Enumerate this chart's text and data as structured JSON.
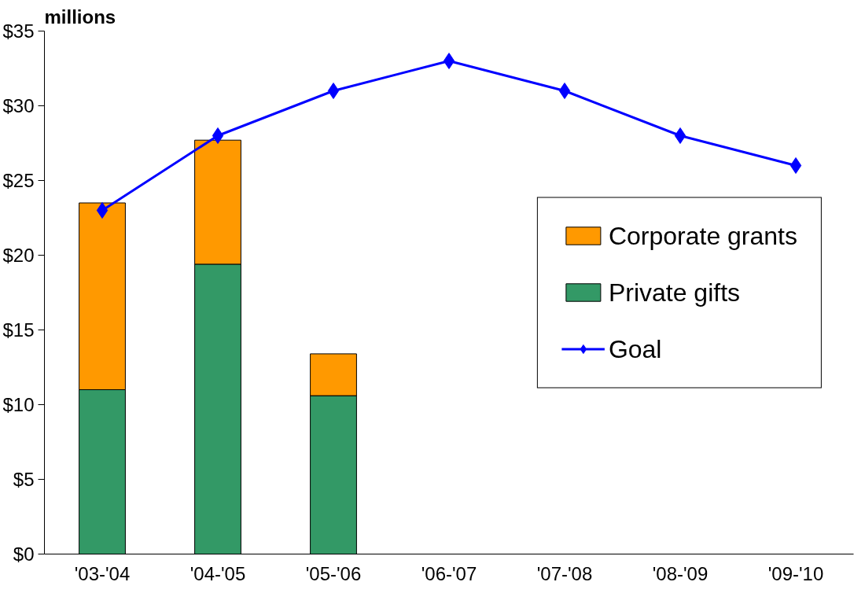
{
  "chart_data": {
    "type": "bar",
    "ylabel": "millions",
    "stacked": true,
    "categories": [
      "'03-'04",
      "'04-'05",
      "'05-'06",
      "'06-'07",
      "'07-'08",
      "'08-'09",
      "'09-'10"
    ],
    "series": [
      {
        "name": "Private gifts",
        "color": "#339966",
        "values": [
          11,
          19.4,
          10.6,
          null,
          null,
          null,
          null
        ]
      },
      {
        "name": "Corporate grants",
        "color": "#ff9900",
        "values": [
          12.5,
          8.3,
          2.8,
          null,
          null,
          null,
          null
        ]
      },
      {
        "name": "Goal",
        "type": "line",
        "color": "#0000ff",
        "marker": "diamond",
        "line_style": "solid",
        "values": [
          23,
          28,
          31,
          33,
          31,
          28,
          26
        ]
      }
    ],
    "ylim": [
      0,
      35
    ],
    "yticks": [
      {
        "value": 0,
        "label": "$0"
      },
      {
        "value": 5,
        "label": "$5"
      },
      {
        "value": 10,
        "label": "$10"
      },
      {
        "value": 15,
        "label": "$15"
      },
      {
        "value": 20,
        "label": "$20"
      },
      {
        "value": 25,
        "label": "$25"
      },
      {
        "value": 30,
        "label": "$30"
      },
      {
        "value": 35,
        "label": "$35"
      }
    ],
    "grid": false,
    "legend": "right"
  }
}
